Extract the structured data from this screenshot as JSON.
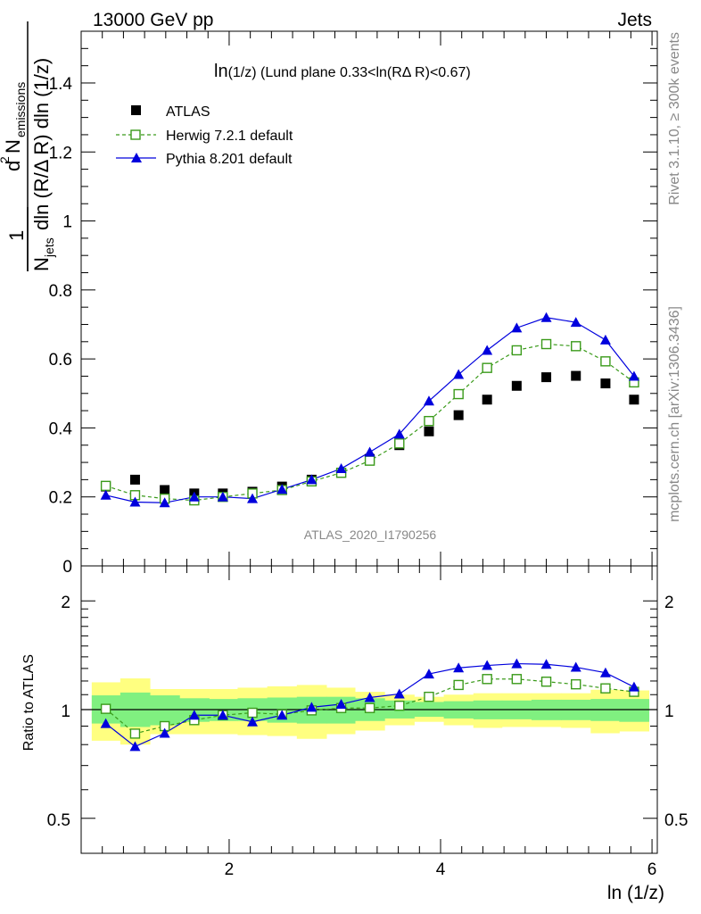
{
  "header": {
    "energy_label": "13000 GeV pp",
    "category_label": "Jets"
  },
  "side_text": {
    "rivet": "Rivet 3.1.10, ≥ 300k events",
    "mcplots": "mcplots.cern.ch [arXiv:1306.3436]"
  },
  "watermark": "ATLAS_2020_I1790256",
  "chart_data": [
    {
      "type": "scatter",
      "title": "ln(1/z) (Lund plane 0.33<ln(RΔ R)<0.67)",
      "title_main": "ln",
      "title_rest": "(1/z) (Lund plane 0.33<ln(RΔ R)<0.67)",
      "ylabel_parts": {
        "one": "1",
        "n": "N",
        "jets": "jets",
        "dln": "dln (R/Δ R) dln (1/z)",
        "d2": "d",
        "two": "2",
        "nem": "N",
        "emissions": "emissions"
      },
      "xlabel": "ln (1/z)",
      "xlim": [
        0.6,
        6.05
      ],
      "ylim": [
        0,
        1.55
      ],
      "yticks": [
        0,
        0.2,
        0.4,
        0.6,
        0.8,
        1,
        1.2,
        1.4
      ],
      "ytick_labels": [
        "0",
        "0.2",
        "0.4",
        "0.6",
        "0.8",
        "1",
        "1.2",
        "1.4"
      ],
      "legend_position": "top-left",
      "x": [
        0.833,
        1.11,
        1.39,
        1.67,
        1.94,
        2.22,
        2.5,
        2.78,
        3.06,
        3.33,
        3.61,
        3.89,
        4.17,
        4.44,
        4.72,
        5.0,
        5.28,
        5.56,
        5.83
      ],
      "series": [
        {
          "name": "ATLAS",
          "color": "#000000",
          "marker": "square-filled",
          "values": [
            0.23,
            0.25,
            0.22,
            0.21,
            0.21,
            0.215,
            0.23,
            0.25,
            0.27,
            0.31,
            0.35,
            0.39,
            0.437,
            0.482,
            0.522,
            0.547,
            0.551,
            0.529,
            0.482
          ]
        },
        {
          "name": "Herwig 7.2.1 default",
          "color": "#3a9a1a",
          "marker": "square-open",
          "line": "dashed",
          "values": [
            0.232,
            0.205,
            0.195,
            0.19,
            0.2,
            0.21,
            0.22,
            0.245,
            0.27,
            0.305,
            0.355,
            0.42,
            0.498,
            0.574,
            0.625,
            0.643,
            0.637,
            0.593,
            0.532
          ]
        },
        {
          "name": "Pythia 8.201 default",
          "color": "#0000dd",
          "marker": "triangle-filled",
          "line": "solid",
          "values": [
            0.205,
            0.185,
            0.183,
            0.2,
            0.2,
            0.195,
            0.222,
            0.25,
            0.282,
            0.33,
            0.382,
            0.478,
            0.555,
            0.625,
            0.69,
            0.72,
            0.706,
            0.655,
            0.55
          ]
        }
      ]
    },
    {
      "type": "scatter",
      "ylabel": "Ratio to ATLAS",
      "xlabel": "ln (1/z)",
      "xlim": [
        0.6,
        6.05
      ],
      "ylim": [
        0.4,
        2.5
      ],
      "log_scale_y": true,
      "yticks": [
        0.5,
        1,
        2
      ],
      "ytick_labels": [
        "0.5",
        "1",
        "2"
      ],
      "xticks": [
        2,
        4,
        6
      ],
      "xtick_labels": [
        "2",
        "4",
        "6"
      ],
      "reference_line": 1,
      "band_edges": [
        0.7,
        0.97,
        1.25,
        1.53,
        1.81,
        2.08,
        2.36,
        2.64,
        2.92,
        3.19,
        3.47,
        3.75,
        4.03,
        4.31,
        4.58,
        4.86,
        5.14,
        5.42,
        5.69,
        5.97
      ],
      "band_inner": {
        "color": "#80f080",
        "low": [
          0.915,
          0.895,
          0.905,
          0.925,
          0.93,
          0.93,
          0.92,
          0.915,
          0.915,
          0.93,
          0.945,
          0.955,
          0.945,
          0.94,
          0.94,
          0.935,
          0.935,
          0.93,
          0.925
        ],
        "high": [
          1.095,
          1.115,
          1.095,
          1.075,
          1.07,
          1.075,
          1.08,
          1.085,
          1.085,
          1.075,
          1.06,
          1.05,
          1.055,
          1.06,
          1.06,
          1.065,
          1.065,
          1.07,
          1.07
        ]
      },
      "band_outer": {
        "color": "#ffff80",
        "low": [
          0.82,
          0.8,
          0.855,
          0.855,
          0.855,
          0.85,
          0.845,
          0.83,
          0.855,
          0.875,
          0.905,
          0.925,
          0.905,
          0.89,
          0.895,
          0.895,
          0.89,
          0.86,
          0.87
        ],
        "high": [
          1.19,
          1.22,
          1.14,
          1.14,
          1.14,
          1.15,
          1.16,
          1.17,
          1.15,
          1.12,
          1.1,
          1.085,
          1.1,
          1.11,
          1.11,
          1.11,
          1.11,
          1.135,
          1.13
        ]
      },
      "series": [
        {
          "name": "Herwig 7.2.1 default",
          "color": "#3a9a1a",
          "values": [
            1.005,
            0.858,
            0.9,
            0.935,
            0.965,
            0.98,
            0.97,
            0.995,
            1.01,
            1.01,
            1.025,
            1.085,
            1.17,
            1.215,
            1.215,
            1.195,
            1.175,
            1.145,
            1.12
          ]
        },
        {
          "name": "Pythia 8.201 default",
          "color": "#0000dd",
          "values": [
            0.915,
            0.79,
            0.86,
            0.965,
            0.965,
            0.925,
            0.965,
            1.015,
            1.035,
            1.08,
            1.105,
            1.255,
            1.305,
            1.325,
            1.34,
            1.335,
            1.31,
            1.265,
            1.155
          ]
        }
      ]
    }
  ]
}
